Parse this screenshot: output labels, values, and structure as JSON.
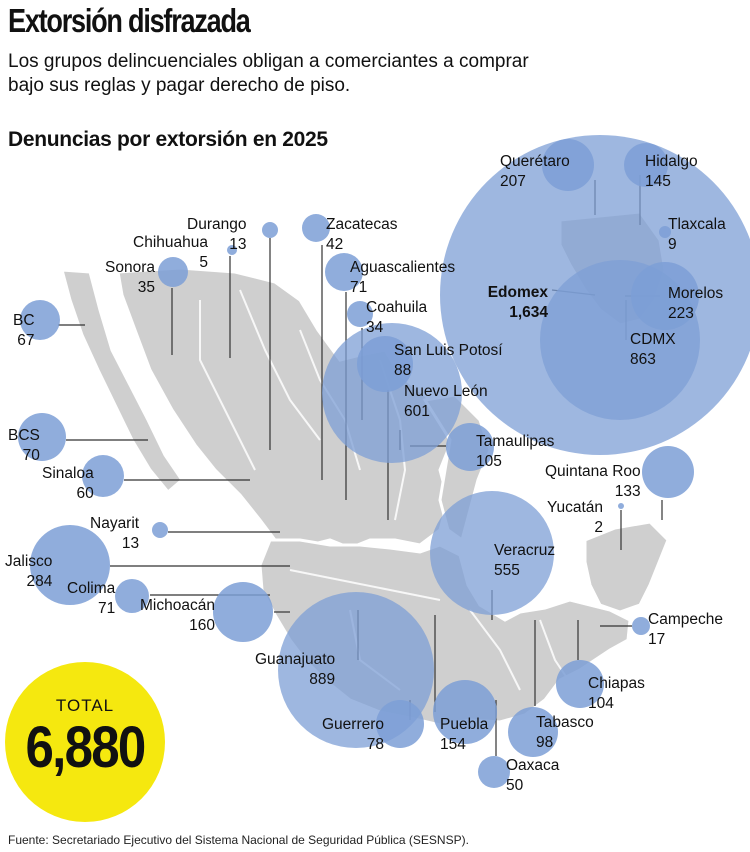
{
  "header": {
    "title": "Extorsión disfrazada",
    "subtitle": "Los grupos delincuenciales obligan a comerciantes a comprar bajo sus reglas y pagar derecho de piso.",
    "chart_title": "Denuncias por extorsión en 2025"
  },
  "total": {
    "label": "TOTAL",
    "value": "6,880"
  },
  "source": "Fuente: Secretariado Ejecutivo del Sistema Nacional de Seguridad Pública (SESNSP).",
  "colors": {
    "bubble": "#7d9fd6",
    "map": "#cfcfcf",
    "total_circle": "#f5e80f"
  },
  "states": [
    {
      "name": "Querétaro",
      "value": "207"
    },
    {
      "name": "Hidalgo",
      "value": "145"
    },
    {
      "name": "Tlaxcala",
      "value": "9"
    },
    {
      "name": "Edomex",
      "value": "1,634"
    },
    {
      "name": "Morelos",
      "value": "223"
    },
    {
      "name": "CDMX",
      "value": "863"
    },
    {
      "name": "Durango",
      "value": "13"
    },
    {
      "name": "Chihuahua",
      "value": "5"
    },
    {
      "name": "Zacatecas",
      "value": "42"
    },
    {
      "name": "Sonora",
      "value": "35"
    },
    {
      "name": "Aguascalientes",
      "value": "71"
    },
    {
      "name": "Coahuila",
      "value": "34"
    },
    {
      "name": "BC",
      "value": "67"
    },
    {
      "name": "San Luis Potosí",
      "value": "88"
    },
    {
      "name": "Nuevo León",
      "value": "601"
    },
    {
      "name": "BCS",
      "value": "70"
    },
    {
      "name": "Tamaulipas",
      "value": "105"
    },
    {
      "name": "Sinaloa",
      "value": "60"
    },
    {
      "name": "Quintana Roo",
      "value": "133"
    },
    {
      "name": "Yucatán",
      "value": "2"
    },
    {
      "name": "Nayarit",
      "value": "13"
    },
    {
      "name": "Veracruz",
      "value": "555"
    },
    {
      "name": "Jalisco",
      "value": "284"
    },
    {
      "name": "Colima",
      "value": "71"
    },
    {
      "name": "Michoacán",
      "value": "160"
    },
    {
      "name": "Campeche",
      "value": "17"
    },
    {
      "name": "Guanajuato",
      "value": "889"
    },
    {
      "name": "Chiapas",
      "value": "104"
    },
    {
      "name": "Guerrero",
      "value": "78"
    },
    {
      "name": "Puebla",
      "value": "154"
    },
    {
      "name": "Tabasco",
      "value": "98"
    },
    {
      "name": "Oaxaca",
      "value": "50"
    }
  ]
}
